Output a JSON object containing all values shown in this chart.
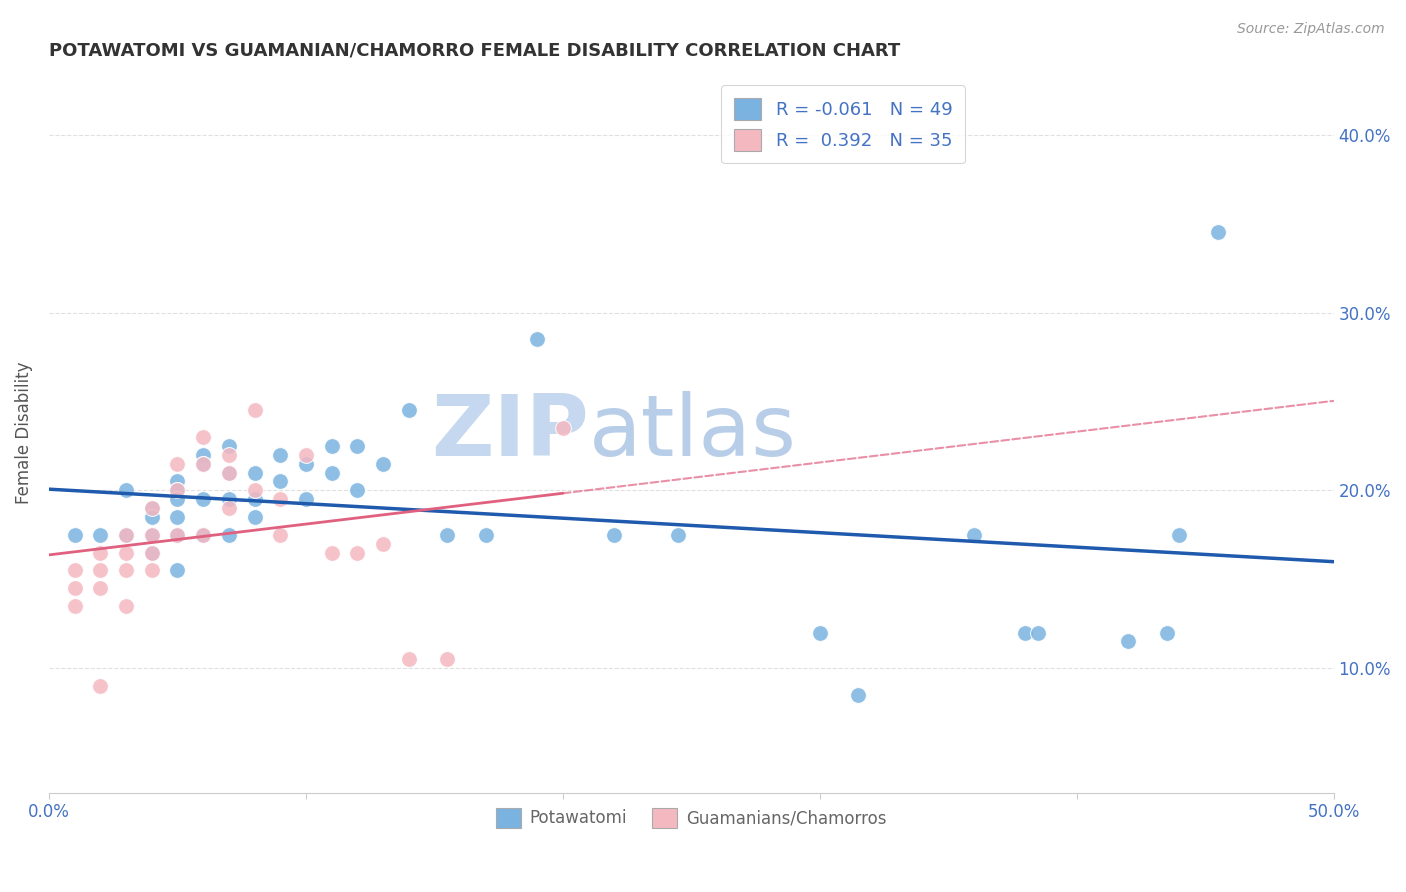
{
  "title": "POTAWATOMI VS GUAMANIAN/CHAMORRO FEMALE DISABILITY CORRELATION CHART",
  "source": "Source: ZipAtlas.com",
  "ylabel": "Female Disability",
  "xlim": [
    0.0,
    0.5
  ],
  "ylim": [
    0.03,
    0.435
  ],
  "xticks": [
    0.0,
    0.1,
    0.2,
    0.3,
    0.4,
    0.5
  ],
  "xticklabels": [
    "0.0%",
    "",
    "",
    "",
    "",
    "50.0%"
  ],
  "yticks_right": [
    0.1,
    0.2,
    0.3,
    0.4
  ],
  "ytick_labels_right": [
    "10.0%",
    "20.0%",
    "30.0%",
    "40.0%"
  ],
  "legend_entries": [
    {
      "label": "R = -0.061   N = 49",
      "color": "#aec6e8"
    },
    {
      "label": "R =  0.392   N = 35",
      "color": "#f4b8c1"
    }
  ],
  "blue_scatter_color": "#7ab3e0",
  "pink_scatter_color": "#f4b8c1",
  "trendline_blue_color": "#1f5aad",
  "trendline_pink_color": "#e06080",
  "blue_x": [
    0.01,
    0.02,
    0.03,
    0.03,
    0.04,
    0.04,
    0.04,
    0.04,
    0.05,
    0.05,
    0.05,
    0.05,
    0.05,
    0.05,
    0.06,
    0.06,
    0.06,
    0.06,
    0.07,
    0.07,
    0.07,
    0.07,
    0.08,
    0.08,
    0.08,
    0.09,
    0.09,
    0.1,
    0.1,
    0.11,
    0.11,
    0.12,
    0.12,
    0.13,
    0.14,
    0.155,
    0.17,
    0.19,
    0.22,
    0.245,
    0.3,
    0.315,
    0.36,
    0.38,
    0.385,
    0.42,
    0.435,
    0.44,
    0.455
  ],
  "blue_y": [
    0.175,
    0.175,
    0.2,
    0.175,
    0.19,
    0.185,
    0.175,
    0.165,
    0.205,
    0.2,
    0.195,
    0.185,
    0.175,
    0.155,
    0.22,
    0.215,
    0.195,
    0.175,
    0.225,
    0.21,
    0.195,
    0.175,
    0.21,
    0.195,
    0.185,
    0.22,
    0.205,
    0.215,
    0.195,
    0.225,
    0.21,
    0.225,
    0.2,
    0.215,
    0.245,
    0.175,
    0.175,
    0.285,
    0.175,
    0.175,
    0.12,
    0.085,
    0.175,
    0.12,
    0.12,
    0.115,
    0.12,
    0.175,
    0.345
  ],
  "pink_x": [
    0.01,
    0.01,
    0.01,
    0.02,
    0.02,
    0.02,
    0.02,
    0.03,
    0.03,
    0.03,
    0.03,
    0.04,
    0.04,
    0.04,
    0.04,
    0.05,
    0.05,
    0.05,
    0.06,
    0.06,
    0.06,
    0.07,
    0.07,
    0.07,
    0.08,
    0.08,
    0.09,
    0.09,
    0.1,
    0.11,
    0.12,
    0.13,
    0.14,
    0.155,
    0.2
  ],
  "pink_y": [
    0.155,
    0.145,
    0.135,
    0.165,
    0.155,
    0.145,
    0.09,
    0.175,
    0.165,
    0.155,
    0.135,
    0.19,
    0.175,
    0.165,
    0.155,
    0.215,
    0.2,
    0.175,
    0.23,
    0.215,
    0.175,
    0.22,
    0.21,
    0.19,
    0.245,
    0.2,
    0.195,
    0.175,
    0.22,
    0.165,
    0.165,
    0.17,
    0.105,
    0.105,
    0.235
  ],
  "watermark_zip": "ZIP",
  "watermark_atlas": "atlas",
  "watermark_color_zip": "#c8d8f0",
  "watermark_color_atlas": "#b0c8e8",
  "grid_color": "#e0e0e0",
  "background_color": "#ffffff",
  "title_color": "#333333",
  "axis_label_color": "#555555",
  "tick_label_color": "#4472c4",
  "legend_text_color": "#4472c4",
  "bottom_legend_color": "#666666"
}
